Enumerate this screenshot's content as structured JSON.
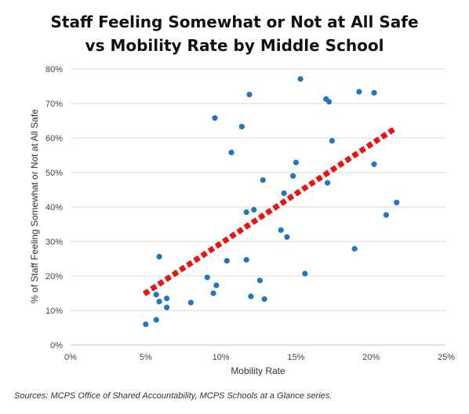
{
  "chart_data": {
    "type": "scatter",
    "title_lines": [
      "Staff Feeling Somewhat or Not at All Safe",
      "vs Mobility Rate by Middle School"
    ],
    "xlabel": "Mobility Rate",
    "ylabel": "% of Staff Feeling Somewhat or Not at All Safe",
    "xlim": [
      0,
      25
    ],
    "ylim": [
      0,
      80
    ],
    "x_ticks": [
      0,
      5,
      10,
      15,
      20,
      25
    ],
    "x_tick_labels": [
      "0%",
      "5%",
      "10%",
      "15%",
      "20%",
      "25%"
    ],
    "y_ticks": [
      0,
      10,
      20,
      30,
      40,
      50,
      60,
      70,
      80
    ],
    "y_tick_labels": [
      "0%",
      "10%",
      "20%",
      "30%",
      "40%",
      "50%",
      "60%",
      "70%",
      "80%"
    ],
    "grid": "horizontal",
    "marker_color": "#1f77c4",
    "trendline": {
      "style": "dashed",
      "color": "#ee1111",
      "x": [
        4.9,
        21.5
      ],
      "y": [
        14.8,
        62.5
      ]
    },
    "points": [
      {
        "x": 5.0,
        "y": 6.0
      },
      {
        "x": 5.7,
        "y": 7.3
      },
      {
        "x": 5.7,
        "y": 14.6
      },
      {
        "x": 5.9,
        "y": 25.6
      },
      {
        "x": 5.9,
        "y": 12.6
      },
      {
        "x": 6.4,
        "y": 13.5
      },
      {
        "x": 6.4,
        "y": 10.9
      },
      {
        "x": 8.0,
        "y": 12.3
      },
      {
        "x": 9.1,
        "y": 19.6
      },
      {
        "x": 9.5,
        "y": 15.0
      },
      {
        "x": 9.6,
        "y": 65.8
      },
      {
        "x": 9.7,
        "y": 17.3
      },
      {
        "x": 10.4,
        "y": 24.4
      },
      {
        "x": 10.7,
        "y": 55.8
      },
      {
        "x": 11.4,
        "y": 63.3
      },
      {
        "x": 11.7,
        "y": 38.5
      },
      {
        "x": 11.7,
        "y": 24.7
      },
      {
        "x": 11.9,
        "y": 72.6
      },
      {
        "x": 12.0,
        "y": 14.1
      },
      {
        "x": 12.2,
        "y": 39.2
      },
      {
        "x": 12.6,
        "y": 18.7
      },
      {
        "x": 12.8,
        "y": 47.8
      },
      {
        "x": 12.9,
        "y": 13.3
      },
      {
        "x": 14.0,
        "y": 33.3
      },
      {
        "x": 14.2,
        "y": 44.0
      },
      {
        "x": 14.4,
        "y": 31.3
      },
      {
        "x": 14.8,
        "y": 49.0
      },
      {
        "x": 15.0,
        "y": 52.9
      },
      {
        "x": 15.3,
        "y": 77.1
      },
      {
        "x": 15.6,
        "y": 20.7
      },
      {
        "x": 17.0,
        "y": 71.3
      },
      {
        "x": 17.1,
        "y": 47.0
      },
      {
        "x": 17.2,
        "y": 70.5
      },
      {
        "x": 17.4,
        "y": 59.2
      },
      {
        "x": 18.9,
        "y": 27.9
      },
      {
        "x": 19.2,
        "y": 73.4
      },
      {
        "x": 20.2,
        "y": 73.1
      },
      {
        "x": 20.2,
        "y": 52.4
      },
      {
        "x": 21.0,
        "y": 37.7
      },
      {
        "x": 21.7,
        "y": 41.3
      }
    ]
  },
  "footer": {
    "source": "Sources: MCPS Office of Shared Accountability, MCPS Schools at a Glance series."
  }
}
